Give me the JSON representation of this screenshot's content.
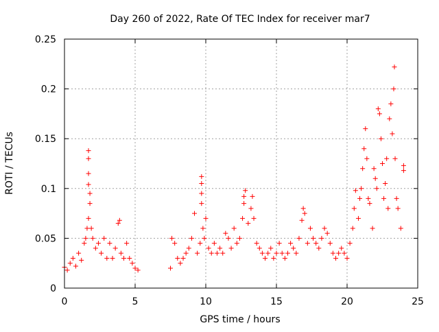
{
  "chart_data": {
    "type": "scatter",
    "title": "Day 260 of 2022, Rate Of TEC Index for receiver mar7",
    "xlabel": "GPS time / hours",
    "ylabel": "ROTI / TECUs",
    "xlim": [
      0,
      25
    ],
    "ylim": [
      0,
      0.25
    ],
    "x_ticks": [
      0,
      5,
      10,
      15,
      20,
      25
    ],
    "y_ticks": [
      0,
      0.05,
      0.1,
      0.15,
      0.2,
      0.25
    ],
    "x_tick_labels": [
      "0",
      "5",
      "10",
      "15",
      "20",
      "25"
    ],
    "y_tick_labels": [
      "0",
      "0.05",
      "0.1",
      "0.15",
      "0.2",
      "0.25"
    ],
    "grid": true,
    "marker": "plus",
    "color": "#ff0000",
    "series": [
      {
        "points": [
          [
            0.0,
            0.021
          ],
          [
            0.2,
            0.018
          ],
          [
            0.4,
            0.025
          ],
          [
            0.6,
            0.03
          ],
          [
            0.8,
            0.022
          ],
          [
            1.0,
            0.035
          ],
          [
            1.2,
            0.028
          ],
          [
            1.4,
            0.045
          ],
          [
            1.5,
            0.05
          ],
          [
            1.6,
            0.06
          ],
          [
            1.7,
            0.07
          ],
          [
            1.7,
            0.104
          ],
          [
            1.7,
            0.115
          ],
          [
            1.7,
            0.13
          ],
          [
            1.7,
            0.138
          ],
          [
            1.8,
            0.095
          ],
          [
            1.8,
            0.085
          ],
          [
            1.9,
            0.06
          ],
          [
            2.0,
            0.05
          ],
          [
            2.2,
            0.04
          ],
          [
            2.4,
            0.045
          ],
          [
            2.6,
            0.035
          ],
          [
            2.8,
            0.05
          ],
          [
            3.0,
            0.03
          ],
          [
            3.2,
            0.045
          ],
          [
            3.4,
            0.03
          ],
          [
            3.6,
            0.04
          ],
          [
            3.8,
            0.065
          ],
          [
            3.9,
            0.068
          ],
          [
            4.0,
            0.035
          ],
          [
            4.2,
            0.03
          ],
          [
            4.4,
            0.045
          ],
          [
            4.6,
            0.03
          ],
          [
            4.8,
            0.025
          ],
          [
            5.0,
            0.02
          ],
          [
            5.2,
            0.018
          ],
          [
            7.5,
            0.02
          ],
          [
            7.6,
            0.05
          ],
          [
            7.8,
            0.045
          ],
          [
            8.0,
            0.03
          ],
          [
            8.2,
            0.025
          ],
          [
            8.4,
            0.03
          ],
          [
            8.6,
            0.035
          ],
          [
            8.8,
            0.04
          ],
          [
            9.0,
            0.05
          ],
          [
            9.2,
            0.075
          ],
          [
            9.4,
            0.035
          ],
          [
            9.6,
            0.045
          ],
          [
            9.7,
            0.085
          ],
          [
            9.7,
            0.095
          ],
          [
            9.7,
            0.105
          ],
          [
            9.7,
            0.112
          ],
          [
            9.8,
            0.06
          ],
          [
            9.9,
            0.05
          ],
          [
            10.0,
            0.07
          ],
          [
            10.2,
            0.04
          ],
          [
            10.4,
            0.035
          ],
          [
            10.6,
            0.045
          ],
          [
            10.8,
            0.035
          ],
          [
            11.0,
            0.04
          ],
          [
            11.2,
            0.035
          ],
          [
            11.4,
            0.055
          ],
          [
            11.6,
            0.05
          ],
          [
            11.8,
            0.04
          ],
          [
            12.0,
            0.06
          ],
          [
            12.2,
            0.045
          ],
          [
            12.4,
            0.05
          ],
          [
            12.6,
            0.07
          ],
          [
            12.7,
            0.085
          ],
          [
            12.7,
            0.092
          ],
          [
            12.8,
            0.098
          ],
          [
            13.0,
            0.065
          ],
          [
            13.2,
            0.08
          ],
          [
            13.3,
            0.092
          ],
          [
            13.4,
            0.07
          ],
          [
            13.6,
            0.045
          ],
          [
            13.8,
            0.04
          ],
          [
            14.0,
            0.035
          ],
          [
            14.2,
            0.03
          ],
          [
            14.4,
            0.035
          ],
          [
            14.6,
            0.04
          ],
          [
            14.8,
            0.03
          ],
          [
            15.0,
            0.035
          ],
          [
            15.2,
            0.045
          ],
          [
            15.4,
            0.035
          ],
          [
            15.6,
            0.03
          ],
          [
            15.8,
            0.035
          ],
          [
            16.0,
            0.045
          ],
          [
            16.2,
            0.04
          ],
          [
            16.4,
            0.035
          ],
          [
            16.6,
            0.05
          ],
          [
            16.8,
            0.068
          ],
          [
            16.9,
            0.08
          ],
          [
            17.0,
            0.075
          ],
          [
            17.2,
            0.045
          ],
          [
            17.4,
            0.06
          ],
          [
            17.6,
            0.05
          ],
          [
            17.8,
            0.045
          ],
          [
            18.0,
            0.04
          ],
          [
            18.2,
            0.05
          ],
          [
            18.4,
            0.06
          ],
          [
            18.6,
            0.055
          ],
          [
            18.8,
            0.045
          ],
          [
            19.0,
            0.035
          ],
          [
            19.2,
            0.03
          ],
          [
            19.4,
            0.035
          ],
          [
            19.6,
            0.04
          ],
          [
            19.8,
            0.035
          ],
          [
            20.0,
            0.03
          ],
          [
            20.2,
            0.045
          ],
          [
            20.4,
            0.06
          ],
          [
            20.5,
            0.08
          ],
          [
            20.6,
            0.098
          ],
          [
            20.8,
            0.07
          ],
          [
            20.9,
            0.09
          ],
          [
            21.0,
            0.1
          ],
          [
            21.1,
            0.12
          ],
          [
            21.2,
            0.14
          ],
          [
            21.3,
            0.16
          ],
          [
            21.4,
            0.13
          ],
          [
            21.5,
            0.09
          ],
          [
            21.6,
            0.085
          ],
          [
            21.8,
            0.06
          ],
          [
            21.9,
            0.12
          ],
          [
            22.0,
            0.11
          ],
          [
            22.1,
            0.1
          ],
          [
            22.2,
            0.18
          ],
          [
            22.3,
            0.175
          ],
          [
            22.4,
            0.15
          ],
          [
            22.5,
            0.125
          ],
          [
            22.6,
            0.09
          ],
          [
            22.7,
            0.105
          ],
          [
            22.8,
            0.13
          ],
          [
            22.9,
            0.08
          ],
          [
            23.0,
            0.17
          ],
          [
            23.1,
            0.185
          ],
          [
            23.2,
            0.155
          ],
          [
            23.3,
            0.2
          ],
          [
            23.35,
            0.222
          ],
          [
            23.4,
            0.13
          ],
          [
            23.5,
            0.09
          ],
          [
            23.6,
            0.08
          ],
          [
            23.8,
            0.06
          ],
          [
            24.0,
            0.123
          ],
          [
            24.0,
            0.118
          ]
        ]
      }
    ]
  }
}
